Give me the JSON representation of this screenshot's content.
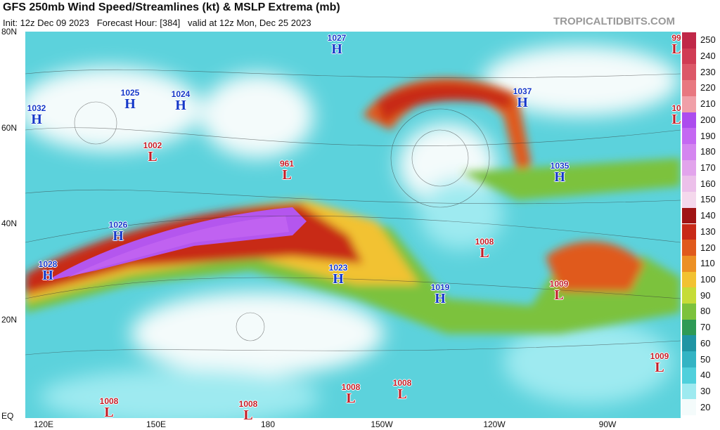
{
  "header": {
    "title": "GFS 250mb Wind Speed/Streamlines (kt) & MSLP Extrema (mb)",
    "subtitle": "Init: 12z Dec 09 2023   Forecast Hour: [384]   valid at 12z Mon, Dec 25 2023",
    "credit": "TROPICALTIDBITS.COM"
  },
  "lat_labels": [
    "80N",
    "60N",
    "40N",
    "20N",
    "EQ"
  ],
  "lon_labels": [
    "120E",
    "150E",
    "180",
    "150W",
    "120W",
    "90W"
  ],
  "centers": [
    {
      "pressure": "1027",
      "type": "H"
    },
    {
      "pressure": "1025",
      "type": "H"
    },
    {
      "pressure": "1024",
      "type": "H"
    },
    {
      "pressure": "1032",
      "type": "H"
    },
    {
      "pressure": "1002",
      "type": "L"
    },
    {
      "pressure": "961",
      "type": "L"
    },
    {
      "pressure": "1037",
      "type": "H"
    },
    {
      "pressure": "1035",
      "type": "H"
    },
    {
      "pressure": "1026",
      "type": "H"
    },
    {
      "pressure": "1028",
      "type": "H"
    },
    {
      "pressure": "1023",
      "type": "H"
    },
    {
      "pressure": "1019",
      "type": "H"
    },
    {
      "pressure": "1008",
      "type": "L"
    },
    {
      "pressure": "1009",
      "type": "L"
    },
    {
      "pressure": "1009",
      "type": "L"
    },
    {
      "pressure": "1008",
      "type": "L"
    },
    {
      "pressure": "1008",
      "type": "L"
    },
    {
      "pressure": "1008",
      "type": "L"
    },
    {
      "pressure": "1008",
      "type": "L"
    },
    {
      "pressure": "99",
      "type": "L"
    },
    {
      "pressure": "10",
      "type": "L"
    }
  ],
  "colorbar": {
    "levels": [
      20,
      30,
      40,
      50,
      60,
      70,
      80,
      90,
      100,
      110,
      120,
      130,
      140,
      150,
      160,
      170,
      180,
      190,
      200,
      210,
      220,
      230,
      240,
      250
    ],
    "colors": [
      "#f4fbfb",
      "#9eeaf0",
      "#4fd0dc",
      "#33b4c4",
      "#1f95a4",
      "#2e9a55",
      "#7cc23c",
      "#c6dc38",
      "#f2c232",
      "#ec9024",
      "#e05a1c",
      "#c82a18",
      "#a01414",
      "#f4d8ec",
      "#ecc0ea",
      "#e2a4ec",
      "#d486f0",
      "#c468f2",
      "#ac4cee",
      "#f0a0a8",
      "#e87880",
      "#dc5868",
      "#d03c54",
      "#c02848"
    ]
  }
}
